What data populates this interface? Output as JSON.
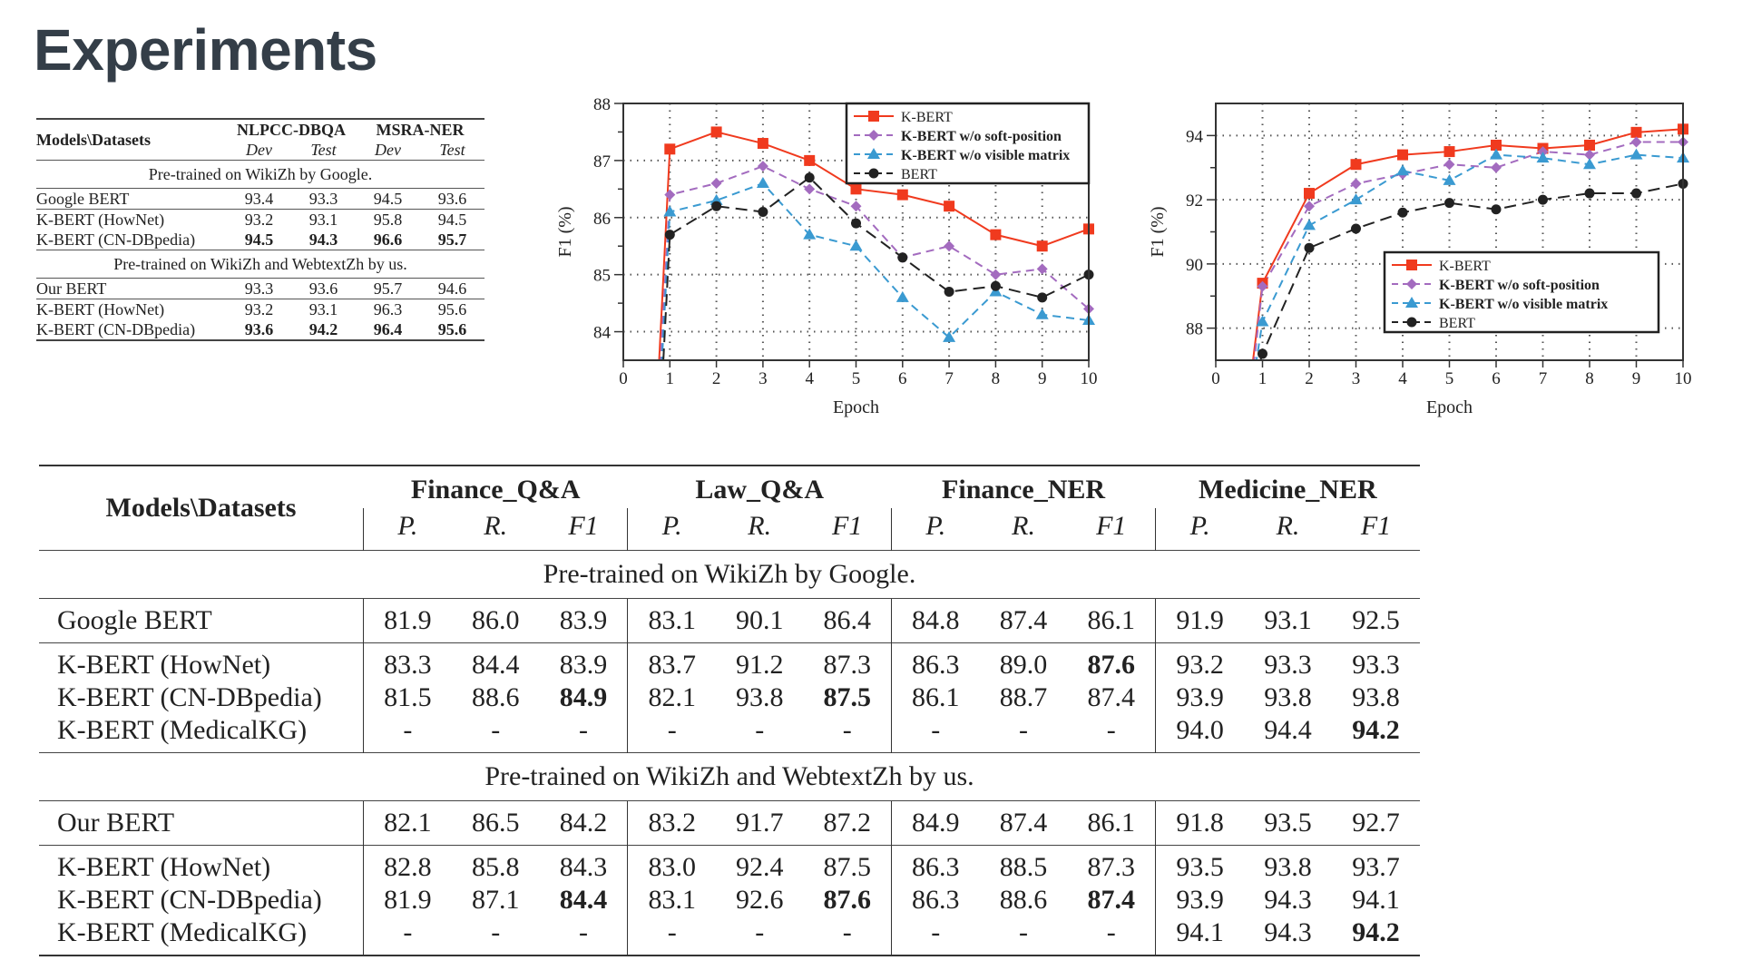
{
  "title": "Experiments",
  "small_table": {
    "corner": "Models\\Datasets",
    "datasets": [
      "NLPCC-DBQA",
      "MSRA-NER"
    ],
    "subcols": [
      "Dev",
      "Test",
      "Dev",
      "Test"
    ],
    "sections": [
      {
        "label": "Pre-trained on WikiZh by Google.",
        "groups": [
          [
            {
              "model": "Google BERT",
              "values": [
                "93.4",
                "93.3",
                "94.5",
                "93.6"
              ],
              "bold": [
                false,
                false,
                false,
                false
              ]
            }
          ],
          [
            {
              "model": "K-BERT (HowNet)",
              "values": [
                "93.2",
                "93.1",
                "95.8",
                "94.5"
              ],
              "bold": [
                false,
                false,
                false,
                false
              ]
            },
            {
              "model": "K-BERT (CN-DBpedia)",
              "values": [
                "94.5",
                "94.3",
                "96.6",
                "95.7"
              ],
              "bold": [
                true,
                true,
                true,
                true
              ]
            }
          ]
        ]
      },
      {
        "label": "Pre-trained on WikiZh and WebtextZh by us.",
        "groups": [
          [
            {
              "model": "Our BERT",
              "values": [
                "93.3",
                "93.6",
                "95.7",
                "94.6"
              ],
              "bold": [
                false,
                false,
                false,
                false
              ]
            }
          ],
          [
            {
              "model": "K-BERT (HowNet)",
              "values": [
                "93.2",
                "93.1",
                "96.3",
                "95.6"
              ],
              "bold": [
                false,
                false,
                false,
                false
              ]
            },
            {
              "model": "K-BERT (CN-DBpedia)",
              "values": [
                "93.6",
                "94.2",
                "96.4",
                "95.6"
              ],
              "bold": [
                true,
                true,
                true,
                true
              ]
            }
          ]
        ]
      }
    ]
  },
  "chart_data": [
    {
      "type": "line",
      "xlabel": "Epoch",
      "ylabel": "F1 (%)",
      "xlim": [
        0,
        10
      ],
      "xticks": [
        0,
        1,
        2,
        3,
        4,
        5,
        6,
        7,
        8,
        9,
        10
      ],
      "ylim": [
        83.5,
        88
      ],
      "yticks": [
        84,
        85,
        86,
        87,
        88
      ],
      "grid": true,
      "legend_placement": "top-right",
      "x": [
        1,
        2,
        3,
        4,
        5,
        6,
        7,
        8,
        9,
        10
      ],
      "series": [
        {
          "name": "K-BERT",
          "color": "#f03a1e",
          "marker": "square",
          "line": "solid",
          "values": [
            87.2,
            87.5,
            87.3,
            87.0,
            86.5,
            86.4,
            86.2,
            85.7,
            85.5,
            85.8
          ]
        },
        {
          "name": "K-BERT w/o soft-position",
          "color": "#a36bbf",
          "marker": "diamond",
          "line": "dashed",
          "values": [
            86.4,
            86.6,
            86.9,
            86.5,
            86.2,
            85.3,
            85.5,
            85.0,
            85.1,
            84.4
          ]
        },
        {
          "name": "K-BERT w/o visible matrix",
          "color": "#3a9ad1",
          "marker": "triangle",
          "line": "dashed",
          "values": [
            86.1,
            86.3,
            86.6,
            85.7,
            85.5,
            84.6,
            83.9,
            84.7,
            84.3,
            84.2
          ]
        },
        {
          "name": "BERT",
          "color": "#222222",
          "marker": "circle",
          "line": "dashed",
          "values": [
            85.7,
            86.2,
            86.1,
            86.7,
            85.9,
            85.3,
            84.7,
            84.8,
            84.6,
            85.0
          ]
        }
      ]
    },
    {
      "type": "line",
      "xlabel": "Epoch",
      "ylabel": "F1 (%)",
      "xlim": [
        0,
        10
      ],
      "xticks": [
        0,
        1,
        2,
        3,
        4,
        5,
        6,
        7,
        8,
        9,
        10
      ],
      "ylim": [
        87,
        95
      ],
      "yticks": [
        88,
        90,
        92,
        94
      ],
      "grid": true,
      "legend_placement": "center-right",
      "x": [
        1,
        2,
        3,
        4,
        5,
        6,
        7,
        8,
        9,
        10
      ],
      "series": [
        {
          "name": "K-BERT",
          "color": "#f03a1e",
          "marker": "square",
          "line": "solid",
          "values": [
            89.4,
            92.2,
            93.1,
            93.4,
            93.5,
            93.7,
            93.6,
            93.7,
            94.1,
            94.2
          ]
        },
        {
          "name": "K-BERT w/o soft-position",
          "color": "#a36bbf",
          "marker": "diamond",
          "line": "dashed",
          "values": [
            89.3,
            91.8,
            92.5,
            92.8,
            93.1,
            93.0,
            93.5,
            93.4,
            93.8,
            93.8
          ]
        },
        {
          "name": "K-BERT w/o visible matrix",
          "color": "#3a9ad1",
          "marker": "triangle",
          "line": "dashed",
          "values": [
            88.2,
            91.2,
            92.0,
            92.9,
            92.6,
            93.4,
            93.3,
            93.1,
            93.4,
            93.3
          ]
        },
        {
          "name": "BERT",
          "color": "#222222",
          "marker": "circle",
          "line": "dashed",
          "values": [
            87.2,
            90.5,
            91.1,
            91.6,
            91.9,
            91.7,
            92.0,
            92.2,
            92.2,
            92.5
          ]
        }
      ]
    }
  ],
  "big_table": {
    "corner": "Models\\Datasets",
    "datasets": [
      "Finance_Q&A",
      "Law_Q&A",
      "Finance_NER",
      "Medicine_NER"
    ],
    "subcols": [
      "P.",
      "R.",
      "F1"
    ],
    "sections": [
      {
        "label": "Pre-trained on WikiZh by Google.",
        "groups": [
          [
            {
              "model": "Google BERT",
              "values": [
                "81.9",
                "86.0",
                "83.9",
                "83.1",
                "90.1",
                "86.4",
                "84.8",
                "87.4",
                "86.1",
                "91.9",
                "93.1",
                "92.5"
              ],
              "bold": []
            }
          ],
          [
            {
              "model": "K-BERT (HowNet)",
              "values": [
                "83.3",
                "84.4",
                "83.9",
                "83.7",
                "91.2",
                "87.3",
                "86.3",
                "89.0",
                "87.6",
                "93.2",
                "93.3",
                "93.3"
              ],
              "bold": [
                8
              ]
            },
            {
              "model": "K-BERT (CN-DBpedia)",
              "values": [
                "81.5",
                "88.6",
                "84.9",
                "82.1",
                "93.8",
                "87.5",
                "86.1",
                "88.7",
                "87.4",
                "93.9",
                "93.8",
                "93.8"
              ],
              "bold": [
                2,
                5
              ]
            },
            {
              "model": "K-BERT (MedicalKG)",
              "values": [
                "-",
                "-",
                "-",
                "-",
                "-",
                "-",
                "-",
                "-",
                "-",
                "94.0",
                "94.4",
                "94.2"
              ],
              "bold": [
                11
              ]
            }
          ]
        ]
      },
      {
        "label": "Pre-trained on WikiZh and WebtextZh by us.",
        "groups": [
          [
            {
              "model": "Our BERT",
              "values": [
                "82.1",
                "86.5",
                "84.2",
                "83.2",
                "91.7",
                "87.2",
                "84.9",
                "87.4",
                "86.1",
                "91.8",
                "93.5",
                "92.7"
              ],
              "bold": []
            }
          ],
          [
            {
              "model": "K-BERT (HowNet)",
              "values": [
                "82.8",
                "85.8",
                "84.3",
                "83.0",
                "92.4",
                "87.5",
                "86.3",
                "88.5",
                "87.3",
                "93.5",
                "93.8",
                "93.7"
              ],
              "bold": []
            },
            {
              "model": "K-BERT (CN-DBpedia)",
              "values": [
                "81.9",
                "87.1",
                "84.4",
                "83.1",
                "92.6",
                "87.6",
                "86.3",
                "88.6",
                "87.4",
                "93.9",
                "94.3",
                "94.1"
              ],
              "bold": [
                2,
                5,
                8
              ]
            },
            {
              "model": "K-BERT (MedicalKG)",
              "values": [
                "-",
                "-",
                "-",
                "-",
                "-",
                "-",
                "-",
                "-",
                "-",
                "94.1",
                "94.3",
                "94.2"
              ],
              "bold": [
                11
              ]
            }
          ]
        ]
      }
    ]
  }
}
